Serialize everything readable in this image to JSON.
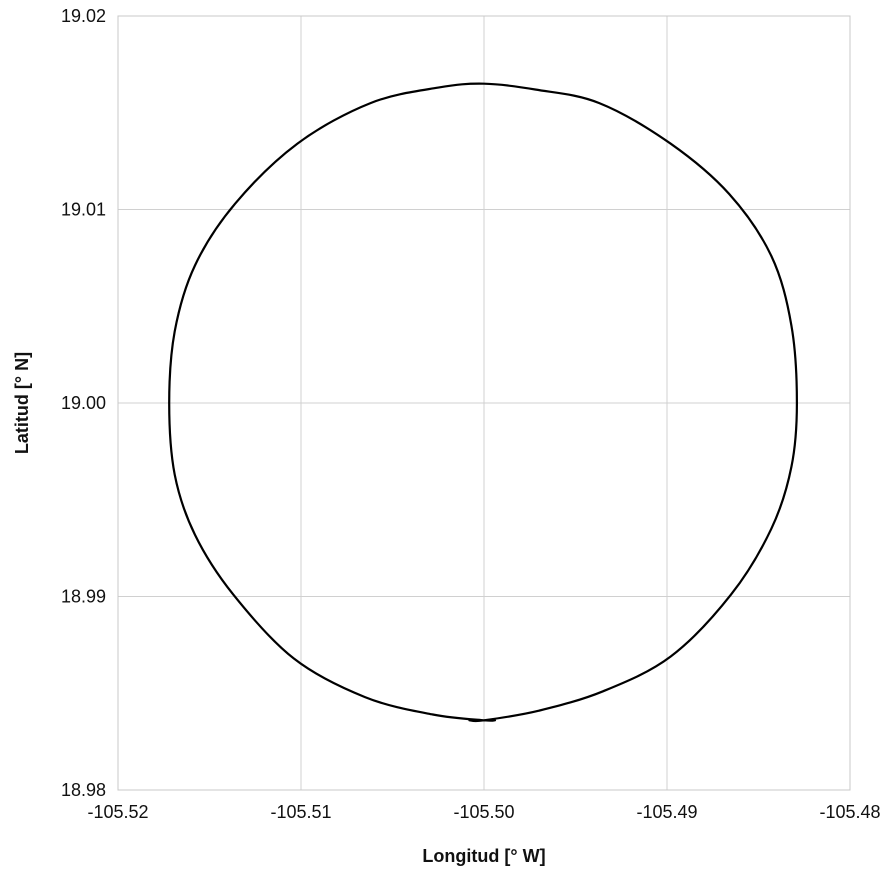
{
  "chart_data": {
    "type": "line",
    "title": "",
    "xlabel": "Longitud [° W]",
    "ylabel": "Latitud [° N]",
    "xlim": [
      -105.52,
      -105.48
    ],
    "ylim": [
      18.98,
      19.02
    ],
    "xticks": [
      -105.52,
      -105.51,
      -105.5,
      -105.49,
      -105.48
    ],
    "yticks": [
      18.98,
      18.99,
      19.0,
      19.01,
      19.02
    ],
    "xtick_labels": [
      "-105.52",
      "-105.51",
      "-105.50",
      "-105.49",
      "-105.48"
    ],
    "ytick_labels": [
      "18.98",
      "18.99",
      "19.00",
      "19.01",
      "19.02"
    ],
    "grid": true,
    "legend": "none",
    "series": [
      {
        "color": "#000000",
        "x": [
          -105.5008,
          -105.5,
          -105.497,
          -105.4935,
          -105.4898,
          -105.4865,
          -105.4843,
          -105.4832,
          -105.4829,
          -105.4832,
          -105.4843,
          -105.4866,
          -105.4898,
          -105.4937,
          -105.4972,
          -105.5,
          -105.5025,
          -105.5062,
          -105.5102,
          -105.5136,
          -105.5158,
          -105.5169,
          -105.5172,
          -105.5169,
          -105.5158,
          -105.5137,
          -105.5104,
          -105.5065,
          -105.5028,
          -105.5,
          -105.4994
        ],
        "y": [
          18.9836,
          18.9836,
          18.9841,
          18.9851,
          18.9869,
          18.9901,
          18.9935,
          18.9967,
          19.0,
          19.004,
          19.0076,
          19.0108,
          19.0134,
          19.0155,
          19.0162,
          19.0165,
          19.0163,
          19.0155,
          19.0134,
          19.0103,
          19.0071,
          19.0037,
          19.0,
          18.9963,
          18.9932,
          18.9901,
          18.9868,
          18.9848,
          18.9839,
          18.9836,
          18.9836
        ]
      }
    ]
  }
}
